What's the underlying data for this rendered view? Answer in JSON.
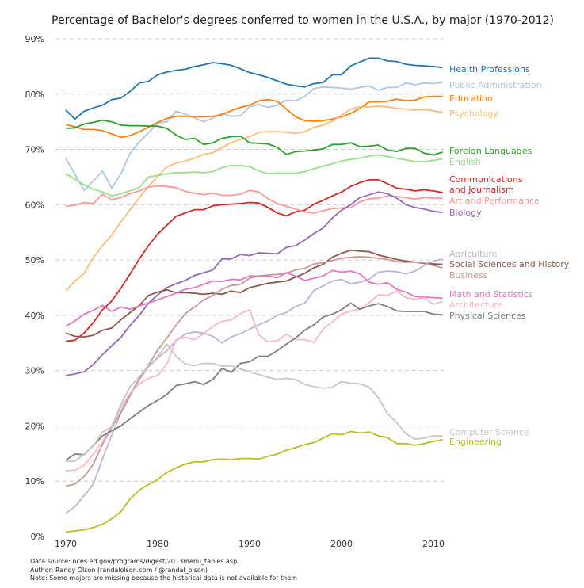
{
  "chart_data": {
    "type": "line",
    "title": "Percentage of Bachelor's degrees conferred to women in the U.S.A., by major (1970-2012)",
    "xlabel": "",
    "ylabel": "",
    "xlim": [
      1970,
      2011
    ],
    "ylim": [
      0,
      90
    ],
    "grid": "horizontal-dashed",
    "legend": "inline-right",
    "x_ticks": [
      "1970",
      "1980",
      "1990",
      "2000",
      "2010"
    ],
    "y_ticks": [
      "0%",
      "10%",
      "20%",
      "30%",
      "40%",
      "50%",
      "60%",
      "70%",
      "80%",
      "90%"
    ],
    "x": [
      1970,
      1971,
      1972,
      1973,
      1974,
      1975,
      1976,
      1977,
      1978,
      1979,
      1980,
      1981,
      1982,
      1983,
      1984,
      1985,
      1986,
      1987,
      1988,
      1989,
      1990,
      1991,
      1992,
      1993,
      1994,
      1995,
      1996,
      1997,
      1998,
      1999,
      2000,
      2001,
      2002,
      2003,
      2004,
      2005,
      2006,
      2007,
      2008,
      2009,
      2010,
      2011
    ],
    "series": [
      {
        "name": "Health Professions",
        "label": "Health Professions",
        "color": "#1f77b4",
        "values": [
          77.1,
          75.5,
          76.9,
          77.5,
          78.0,
          79.0,
          79.3,
          80.5,
          82.0,
          82.3,
          83.5,
          84.0,
          84.3,
          84.5,
          85.0,
          85.3,
          85.7,
          85.5,
          85.2,
          84.6,
          83.9,
          83.5,
          83.0,
          82.4,
          81.8,
          81.5,
          81.3,
          81.9,
          82.1,
          83.5,
          83.5,
          85.1,
          85.8,
          86.5,
          86.5,
          86.0,
          85.9,
          85.4,
          85.2,
          85.1,
          85.0,
          84.8
        ]
      },
      {
        "name": "Public Administration",
        "label": "Public Administration",
        "color": "#aec7e8",
        "values": [
          68.4,
          65.5,
          62.6,
          64.3,
          66.1,
          63.0,
          65.6,
          69.3,
          71.4,
          73.0,
          74.8,
          75.0,
          76.9,
          76.4,
          75.7,
          75.0,
          75.7,
          76.5,
          76.0,
          76.1,
          77.7,
          78.1,
          77.6,
          78.0,
          78.9,
          78.8,
          79.6,
          81.0,
          81.3,
          81.2,
          81.1,
          80.9,
          81.2,
          81.5,
          80.7,
          81.2,
          81.2,
          82.0,
          81.7,
          82.0,
          81.9,
          82.1
        ]
      },
      {
        "name": "Education",
        "label": "Education",
        "color": "#ff7f0e",
        "values": [
          74.5,
          74.1,
          73.6,
          73.6,
          73.4,
          72.8,
          72.2,
          72.5,
          73.2,
          74.0,
          74.9,
          75.6,
          76.0,
          76.0,
          75.9,
          75.9,
          76.0,
          76.3,
          77.0,
          77.6,
          78.0,
          78.8,
          79.0,
          78.7,
          77.3,
          75.9,
          75.2,
          75.1,
          75.2,
          75.5,
          75.9,
          76.5,
          77.4,
          78.6,
          78.6,
          78.7,
          79.1,
          78.8,
          78.9,
          79.5,
          79.6,
          79.6
        ]
      },
      {
        "name": "Psychology",
        "label": "Psychology",
        "color": "#ffbb78",
        "values": [
          44.4,
          46.2,
          47.6,
          50.5,
          52.6,
          54.5,
          56.9,
          59.1,
          61.3,
          63.3,
          65.1,
          66.9,
          67.5,
          67.9,
          68.4,
          69.1,
          69.4,
          70.4,
          71.2,
          71.8,
          72.3,
          73.1,
          73.2,
          73.2,
          73.1,
          72.9,
          73.2,
          74.0,
          74.4,
          75.1,
          76.2,
          77.3,
          77.7,
          77.7,
          77.8,
          77.7,
          77.4,
          77.3,
          77.1,
          77.2,
          77.0,
          76.7
        ]
      },
      {
        "name": "Foreign Languages",
        "label": "Foreign Languages",
        "color": "#2ca02c",
        "values": [
          73.8,
          73.9,
          74.6,
          74.9,
          75.3,
          75.0,
          74.4,
          74.3,
          74.3,
          74.2,
          74.2,
          73.8,
          72.6,
          71.8,
          72.0,
          70.9,
          71.2,
          72.0,
          72.3,
          72.4,
          71.2,
          71.1,
          71.0,
          70.4,
          69.1,
          69.6,
          69.7,
          69.9,
          70.1,
          70.9,
          70.9,
          71.2,
          70.5,
          70.6,
          70.8,
          69.9,
          69.6,
          70.2,
          70.2,
          69.3,
          69.0,
          69.5
        ]
      },
      {
        "name": "English",
        "label": "English",
        "color": "#98df8a",
        "values": [
          65.6,
          64.6,
          63.6,
          62.8,
          62.3,
          61.6,
          62.0,
          62.5,
          63.1,
          65.0,
          65.3,
          65.6,
          65.8,
          65.8,
          65.9,
          65.8,
          66.0,
          66.7,
          67.1,
          67.1,
          66.9,
          66.1,
          65.6,
          65.7,
          65.7,
          65.7,
          66.0,
          66.5,
          67.0,
          67.4,
          67.9,
          68.2,
          68.4,
          68.8,
          69.0,
          68.7,
          68.4,
          68.1,
          67.8,
          67.8,
          68.0,
          68.3
        ]
      },
      {
        "name": "Communications and Journalism",
        "label": "Communications and Journalism",
        "color": "#d62728",
        "values": [
          35.3,
          35.5,
          36.8,
          38.7,
          41.0,
          42.6,
          44.9,
          47.5,
          50.2,
          52.6,
          54.7,
          56.3,
          57.9,
          58.5,
          59.1,
          59.1,
          59.8,
          60.0,
          60.1,
          60.2,
          60.4,
          60.3,
          59.5,
          58.5,
          58.0,
          58.7,
          59.0,
          60.1,
          60.8,
          61.6,
          62.3,
          63.3,
          64.0,
          64.5,
          64.5,
          63.8,
          63.0,
          62.8,
          62.5,
          62.7,
          62.5,
          62.2
        ]
      },
      {
        "name": "Art and Performance",
        "label": "Art and Performance",
        "color": "#ff9896",
        "values": [
          59.7,
          59.9,
          60.4,
          60.2,
          61.9,
          60.9,
          61.3,
          62.0,
          62.5,
          63.2,
          63.4,
          63.3,
          63.1,
          62.4,
          62.1,
          61.8,
          62.1,
          61.7,
          61.7,
          61.9,
          62.6,
          62.3,
          61.1,
          60.2,
          59.7,
          59.2,
          58.7,
          58.5,
          58.9,
          59.3,
          59.4,
          59.5,
          60.5,
          61.1,
          61.2,
          61.6,
          61.5,
          61.3,
          61.0,
          61.3,
          61.2,
          61.2
        ]
      },
      {
        "name": "Biology",
        "label": "Biology",
        "color": "#9467bd",
        "values": [
          29.1,
          29.4,
          29.8,
          31.1,
          32.9,
          34.5,
          36.0,
          38.2,
          40.0,
          42.2,
          43.7,
          45.0,
          45.7,
          46.3,
          47.2,
          47.7,
          48.2,
          50.2,
          50.2,
          51.0,
          50.8,
          51.3,
          51.2,
          51.1,
          52.3,
          52.6,
          53.6,
          54.8,
          55.8,
          57.6,
          59.0,
          60.0,
          61.3,
          61.8,
          62.3,
          62.0,
          61.2,
          60.0,
          59.5,
          59.2,
          58.8,
          58.6
        ]
      },
      {
        "name": "Agriculture",
        "label": "Agriculture",
        "color": "#c5b0d5",
        "values": [
          4.2,
          5.4,
          7.4,
          9.5,
          14.1,
          18.3,
          22.3,
          25.4,
          28.4,
          30.7,
          32.3,
          33.6,
          35.4,
          36.6,
          37.0,
          36.8,
          36.2,
          35.0,
          36.1,
          36.7,
          37.5,
          38.3,
          39.0,
          40.0,
          40.5,
          41.6,
          42.2,
          44.5,
          45.3,
          46.2,
          46.5,
          45.7,
          46.0,
          46.5,
          47.8,
          48.0,
          47.9,
          47.5,
          48.0,
          49.0,
          49.8,
          50.2
        ]
      },
      {
        "name": "Social Sciences and History",
        "label": "Social Sciences and History",
        "color": "#8c564b",
        "values": [
          36.8,
          36.2,
          36.1,
          36.4,
          37.3,
          37.7,
          39.2,
          40.5,
          41.8,
          43.6,
          44.2,
          44.6,
          44.1,
          44.1,
          44.0,
          43.8,
          44.0,
          43.8,
          44.4,
          44.1,
          45.0,
          45.4,
          45.8,
          46.0,
          46.2,
          46.9,
          47.6,
          48.6,
          49.2,
          50.5,
          51.2,
          51.8,
          51.6,
          51.5,
          50.9,
          50.5,
          50.1,
          49.8,
          49.6,
          49.4,
          49.3,
          49.2
        ]
      },
      {
        "name": "Business",
        "label": "Business",
        "color": "#c49c94",
        "values": [
          9.1,
          9.5,
          10.8,
          13.1,
          16.7,
          19.7,
          22.5,
          25.7,
          28.5,
          31.0,
          33.7,
          35.9,
          38.2,
          40.3,
          41.5,
          42.8,
          43.6,
          44.7,
          45.4,
          45.6,
          46.7,
          47.1,
          47.3,
          47.4,
          47.6,
          48.2,
          48.5,
          49.3,
          49.5,
          49.9,
          50.3,
          50.5,
          50.6,
          50.5,
          50.3,
          50.1,
          49.7,
          49.6,
          49.6,
          49.5,
          49.0,
          48.6
        ]
      },
      {
        "name": "Math and Statistics",
        "label": "Math and Statistics",
        "color": "#e377c2",
        "values": [
          38.0,
          39.0,
          40.2,
          40.9,
          41.8,
          40.7,
          41.5,
          41.1,
          41.7,
          42.2,
          42.8,
          43.4,
          44.0,
          44.7,
          45.0,
          45.6,
          46.2,
          46.1,
          46.5,
          46.4,
          47.1,
          47.1,
          47.1,
          46.8,
          47.7,
          47.1,
          46.3,
          46.7,
          47.1,
          48.1,
          47.8,
          48.0,
          47.5,
          46.0,
          45.6,
          45.9,
          44.7,
          44.2,
          43.4,
          43.3,
          43.2,
          43.1
        ]
      },
      {
        "name": "Architecture",
        "label": "Architecture",
        "color": "#f7b6d2",
        "values": [
          11.9,
          12.0,
          12.9,
          14.9,
          17.1,
          20.1,
          23.3,
          25.9,
          27.6,
          28.6,
          29.1,
          31.2,
          35.6,
          36.0,
          35.6,
          36.7,
          38.0,
          38.9,
          39.2,
          40.3,
          41.0,
          36.5,
          35.2,
          35.4,
          36.6,
          35.6,
          35.6,
          35.1,
          37.5,
          38.8,
          40.2,
          40.8,
          41.1,
          42.3,
          43.7,
          43.6,
          44.4,
          43.2,
          42.9,
          43.2,
          42.0,
          42.5
        ]
      },
      {
        "name": "Physical Sciences",
        "label": "Physical Sciences",
        "color": "#7f7f7f",
        "values": [
          13.8,
          14.9,
          14.8,
          16.5,
          18.2,
          19.1,
          20.0,
          21.3,
          22.5,
          23.7,
          24.6,
          25.7,
          27.3,
          27.6,
          28.0,
          27.5,
          28.4,
          30.4,
          29.7,
          31.3,
          31.6,
          32.6,
          32.6,
          33.6,
          34.8,
          35.9,
          37.3,
          38.3,
          39.7,
          40.2,
          41.0,
          42.2,
          41.1,
          41.7,
          42.1,
          41.6,
          40.8,
          40.7,
          40.7,
          40.7,
          40.2,
          40.1
        ]
      },
      {
        "name": "Computer Science",
        "label": "Computer Science",
        "color": "#c7c7c7",
        "values": [
          13.6,
          13.6,
          14.9,
          16.4,
          18.9,
          19.8,
          23.9,
          27.1,
          28.9,
          30.8,
          32.5,
          34.8,
          32.6,
          31.2,
          30.9,
          31.3,
          31.3,
          30.8,
          30.9,
          30.3,
          29.8,
          29.3,
          28.8,
          28.4,
          28.6,
          28.4,
          27.5,
          27.1,
          26.8,
          27.0,
          28.0,
          27.7,
          27.6,
          27.0,
          25.1,
          22.2,
          20.6,
          18.6,
          17.6,
          17.8,
          18.2,
          18.2
        ]
      },
      {
        "name": "Engineering",
        "label": "Engineering",
        "color": "#bcbd22",
        "values": [
          0.8,
          1.0,
          1.2,
          1.6,
          2.2,
          3.2,
          4.5,
          6.8,
          8.4,
          9.4,
          10.3,
          11.6,
          12.4,
          13.1,
          13.5,
          13.5,
          13.9,
          14.0,
          13.9,
          14.1,
          14.1,
          14.0,
          14.5,
          14.9,
          15.6,
          16.1,
          16.6,
          17.0,
          17.8,
          18.6,
          18.4,
          19.0,
          18.7,
          18.9,
          18.2,
          17.9,
          16.8,
          16.8,
          16.5,
          16.8,
          17.2,
          17.5
        ]
      }
    ]
  },
  "labels_order": [
    "Health Professions",
    "Public Administration",
    "Education",
    "Psychology",
    "Foreign Languages",
    "English",
    "Communications and Journalism",
    "Art and Performance",
    "Biology",
    "Agriculture",
    "Social Sciences and History",
    "Business",
    "Math and Statistics",
    "Architecture",
    "Physical Sciences",
    "Computer Science",
    "Engineering"
  ],
  "footer": {
    "source": "Data source: nces.ed.gov/programs/digest/2013menu_tables.asp",
    "author": "Author: Randy Olson (randalolson.com / @randal_olson)",
    "note": "Note: Some majors are missing because the historical data is not available for them"
  }
}
